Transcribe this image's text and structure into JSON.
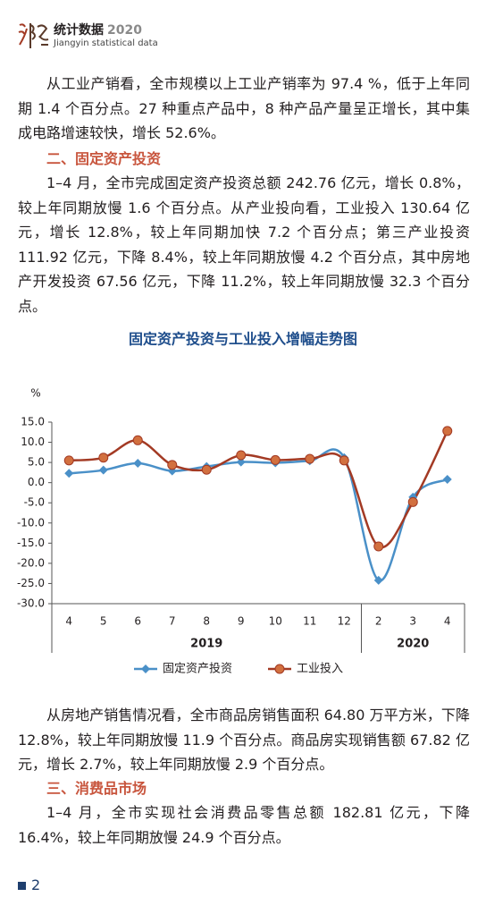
{
  "header": {
    "title": "统计数据",
    "year": "2020",
    "subtitle": "Jiangyin statistical data"
  },
  "paragraph_1": "从工业产销看，全市规模以上工业产销率为 97.4 %，低于上年同期 1.4 个百分点。27 种重点产品中，8 种产品产量呈正增长，其中集成电路增速较快，增长 52.6%。",
  "heading_1": "二、固定资产投资",
  "paragraph_2": "1–4 月，全市完成固定资产投资总额 242.76 亿元，增长 0.8%，较上年同期放慢 1.6 个百分点。从产业投向看，工业投入 130.64 亿元，增长 12.8%，较上年同期加快 7.2 个百分点；第三产业投资 111.92 亿元，下降 8.4%，较上年同期放慢 4.2 个百分点，其中房地产开发投资 67.56 亿元，下降 11.2%，较上年同期放慢 32.3 个百分点。",
  "chart_data": {
    "type": "line",
    "title": "固定资产投资与工业投入增幅走势图",
    "y_unit": "%",
    "categories": [
      "4",
      "5",
      "6",
      "7",
      "8",
      "9",
      "10",
      "11",
      "12",
      "2",
      "3",
      "4"
    ],
    "groups": [
      "2019",
      "2020"
    ],
    "series": [
      {
        "name": "固定资产投资",
        "color": "#4a90c8",
        "marker": "diamond",
        "values": [
          2.3,
          3.1,
          4.8,
          2.9,
          4.0,
          5.1,
          4.9,
          5.4,
          6.2,
          -24.2,
          -3.6,
          0.8
        ]
      },
      {
        "name": "工业投入",
        "color": "#a33a24",
        "marker_color": "#d2703f",
        "marker": "circle",
        "values": [
          5.5,
          6.2,
          10.5,
          4.4,
          3.2,
          6.8,
          5.6,
          5.9,
          5.5,
          -15.8,
          -4.8,
          12.8
        ]
      }
    ],
    "ylim": [
      -30,
      15
    ],
    "yticks": [
      {
        "value": 15,
        "label": "15.0"
      },
      {
        "value": 10,
        "label": "10.0"
      },
      {
        "value": 5,
        "label": "5.0"
      },
      {
        "value": 0,
        "label": "0.0"
      },
      {
        "value": -5,
        "label": "-5.0"
      },
      {
        "value": -10,
        "label": "-10.0"
      },
      {
        "value": -15,
        "label": "-15.0"
      },
      {
        "value": -20,
        "label": "-20.0"
      },
      {
        "value": -25,
        "label": "-25.0"
      },
      {
        "value": -30,
        "label": "-30.0"
      }
    ],
    "grid": false,
    "legend": "bottom"
  },
  "paragraph_3": "从房地产销售情况看，全市商品房销售面积 64.80 万平方米，下降 12.8%，较上年同期放慢 11.9 个百分点。商品房实现销售额 67.82 亿元，增长 2.7%，较上年同期放慢 2.9 个百分点。",
  "heading_2": "三、消费品市场",
  "paragraph_4": "1–4 月，全市实现社会消费品零售总额 182.81 亿元，下降 16.4%，较上年同期放慢 24.9 个百分点。",
  "page_number": 2
}
